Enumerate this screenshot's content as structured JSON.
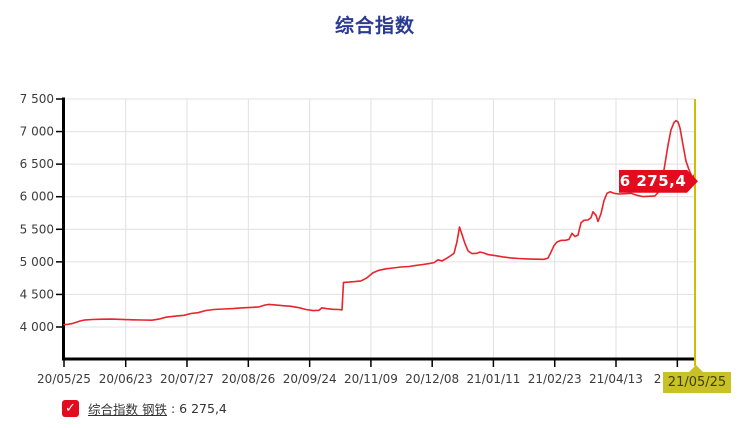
{
  "title": "综合指数",
  "legend": {
    "checkbox_icon": "checkmark",
    "label": "综合指数 钢铁",
    "separator": " : ",
    "value": "6 275,4"
  },
  "colors": {
    "title": "#2b3a94",
    "line": "#e8242d",
    "callout_bg": "#e30b1e",
    "callout_text": "#ffffff",
    "highlight_box": "#c8c227",
    "highlight_line": "#c9c000",
    "highlight_text": "#3f3f05",
    "axis": "#000000",
    "grid": "#e0e0e0",
    "tick_label": "#3c3c3c",
    "legend_text": "#333333"
  },
  "chart_data": {
    "type": "line",
    "title": "综合指数",
    "series_name": "综合指数 钢铁",
    "legend_position": "bottom-left",
    "grid": true,
    "ylim": [
      4000,
      7500
    ],
    "y_tick_step": 500,
    "y_ticks": [
      {
        "value": 7500,
        "label": "7 500"
      },
      {
        "value": 7000,
        "label": "7 000"
      },
      {
        "value": 6500,
        "label": "6 500"
      },
      {
        "value": 6000,
        "label": "6 000"
      },
      {
        "value": 5500,
        "label": "5 500"
      },
      {
        "value": 5000,
        "label": "5 000"
      },
      {
        "value": 4500,
        "label": "4 500"
      },
      {
        "value": 4000,
        "label": "4 000"
      }
    ],
    "x_ticks": [
      {
        "label": "20/05/25",
        "f": 0.0
      },
      {
        "label": "20/06/23",
        "f": 0.0978
      },
      {
        "label": "20/07/27",
        "f": 0.1949
      },
      {
        "label": "20/08/26",
        "f": 0.2921
      },
      {
        "label": "20/09/24",
        "f": 0.3893
      },
      {
        "label": "20/11/09",
        "f": 0.4864
      },
      {
        "label": "20/12/08",
        "f": 0.5835
      },
      {
        "label": "21/01/11",
        "f": 0.6805
      },
      {
        "label": "21/02/23",
        "f": 0.7777
      },
      {
        "label": "21/04/13",
        "f": 0.8748
      },
      {
        "label": "2",
        "f": 0.972,
        "partial": true
      }
    ],
    "x_highlight": {
      "label": "21/05/25",
      "f": 1.0
    },
    "annotation": {
      "text": "6 275,4",
      "value": 6275.4,
      "f": 1.0
    },
    "last_value": 6275.4,
    "points": [
      [
        0.0,
        4035
      ],
      [
        0.0063,
        4042
      ],
      [
        0.0127,
        4052
      ],
      [
        0.019,
        4070
      ],
      [
        0.0254,
        4092
      ],
      [
        0.0317,
        4106
      ],
      [
        0.0444,
        4115
      ],
      [
        0.0602,
        4120
      ],
      [
        0.0761,
        4122
      ],
      [
        0.0919,
        4117
      ],
      [
        0.1078,
        4111
      ],
      [
        0.1236,
        4107
      ],
      [
        0.1395,
        4105
      ],
      [
        0.1506,
        4122
      ],
      [
        0.1617,
        4150
      ],
      [
        0.1775,
        4167
      ],
      [
        0.1902,
        4180
      ],
      [
        0.2013,
        4207
      ],
      [
        0.2124,
        4220
      ],
      [
        0.2251,
        4254
      ],
      [
        0.2377,
        4269
      ],
      [
        0.252,
        4276
      ],
      [
        0.2679,
        4283
      ],
      [
        0.2805,
        4293
      ],
      [
        0.2964,
        4301
      ],
      [
        0.3091,
        4309
      ],
      [
        0.3186,
        4337
      ],
      [
        0.3249,
        4347
      ],
      [
        0.3344,
        4339
      ],
      [
        0.3471,
        4327
      ],
      [
        0.3597,
        4318
      ],
      [
        0.3724,
        4296
      ],
      [
        0.3835,
        4269
      ],
      [
        0.3946,
        4251
      ],
      [
        0.4041,
        4256
      ],
      [
        0.4089,
        4294
      ],
      [
        0.4168,
        4281
      ],
      [
        0.4263,
        4271
      ],
      [
        0.4358,
        4268
      ],
      [
        0.4406,
        4263
      ],
      [
        0.4429,
        4685
      ],
      [
        0.4517,
        4690
      ],
      [
        0.4612,
        4697
      ],
      [
        0.4707,
        4707
      ],
      [
        0.4802,
        4755
      ],
      [
        0.4897,
        4832
      ],
      [
        0.4992,
        4870
      ],
      [
        0.5103,
        4893
      ],
      [
        0.5214,
        4906
      ],
      [
        0.5341,
        4921
      ],
      [
        0.5468,
        4929
      ],
      [
        0.5579,
        4946
      ],
      [
        0.569,
        4959
      ],
      [
        0.5785,
        4973
      ],
      [
        0.5864,
        4989
      ],
      [
        0.5927,
        5031
      ],
      [
        0.5991,
        5013
      ],
      [
        0.6054,
        5049
      ],
      [
        0.6133,
        5097
      ],
      [
        0.6181,
        5131
      ],
      [
        0.6228,
        5310
      ],
      [
        0.6268,
        5535
      ],
      [
        0.6308,
        5420
      ],
      [
        0.6355,
        5280
      ],
      [
        0.6403,
        5170
      ],
      [
        0.6466,
        5126
      ],
      [
        0.6545,
        5132
      ],
      [
        0.6593,
        5151
      ],
      [
        0.6656,
        5136
      ],
      [
        0.672,
        5111
      ],
      [
        0.6831,
        5096
      ],
      [
        0.6957,
        5076
      ],
      [
        0.7084,
        5061
      ],
      [
        0.7211,
        5051
      ],
      [
        0.7338,
        5046
      ],
      [
        0.748,
        5041
      ],
      [
        0.7607,
        5040
      ],
      [
        0.767,
        5058
      ],
      [
        0.7718,
        5150
      ],
      [
        0.7765,
        5250
      ],
      [
        0.7813,
        5305
      ],
      [
        0.7876,
        5330
      ],
      [
        0.7956,
        5333
      ],
      [
        0.8003,
        5345
      ],
      [
        0.8051,
        5438
      ],
      [
        0.8098,
        5390
      ],
      [
        0.8146,
        5410
      ],
      [
        0.8193,
        5600
      ],
      [
        0.8241,
        5638
      ],
      [
        0.8304,
        5642
      ],
      [
        0.8352,
        5680
      ],
      [
        0.8383,
        5768
      ],
      [
        0.8431,
        5715
      ],
      [
        0.8463,
        5620
      ],
      [
        0.851,
        5740
      ],
      [
        0.8558,
        5940
      ],
      [
        0.8605,
        6052
      ],
      [
        0.8653,
        6075
      ],
      [
        0.8716,
        6052
      ],
      [
        0.8795,
        6042
      ],
      [
        0.889,
        6047
      ],
      [
        0.8985,
        6052
      ],
      [
        0.908,
        6022
      ],
      [
        0.9176,
        6002
      ],
      [
        0.9271,
        6006
      ],
      [
        0.9366,
        6012
      ],
      [
        0.9429,
        6082
      ],
      [
        0.9477,
        6235
      ],
      [
        0.9524,
        6505
      ],
      [
        0.9572,
        6790
      ],
      [
        0.9619,
        7025
      ],
      [
        0.9667,
        7140
      ],
      [
        0.9699,
        7168
      ],
      [
        0.973,
        7148
      ],
      [
        0.9762,
        7055
      ],
      [
        0.981,
        6795
      ],
      [
        0.9857,
        6545
      ],
      [
        0.9905,
        6415
      ],
      [
        0.9937,
        6345
      ],
      [
        0.9968,
        6285
      ],
      [
        0.9984,
        6330
      ],
      [
        1.0,
        6275.4
      ]
    ]
  }
}
